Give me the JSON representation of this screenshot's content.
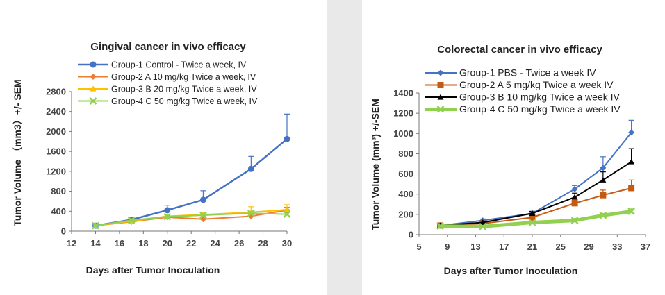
{
  "chart_data": [
    {
      "type": "line",
      "title": "Gingival cancer in vivo efficacy",
      "xlabel": "Days after Tumor Inoculation",
      "ylabel": "Tumor Volume （mm3）+/- SEM",
      "xlim": [
        12,
        30
      ],
      "ylim": [
        0,
        2800
      ],
      "xticks": [
        12,
        14,
        16,
        18,
        20,
        22,
        24,
        26,
        28,
        30
      ],
      "yticks": [
        0,
        400,
        800,
        1200,
        1600,
        2000,
        2400,
        2800
      ],
      "legend_position": "top",
      "series": [
        {
          "name": "Group-1 Control - Twice a week, IV",
          "color": "#4472c4",
          "marker": "circle",
          "line_width": 2.5,
          "x": [
            14,
            17,
            20,
            23,
            27,
            30
          ],
          "values": [
            110,
            230,
            420,
            630,
            1250,
            1850
          ],
          "error": [
            15,
            45,
            100,
            180,
            250,
            500
          ]
        },
        {
          "name": "Group-2 A 10 mg/kg Twice a week, IV",
          "color": "#ed7d31",
          "marker": "diamond",
          "line_width": 2,
          "x": [
            14,
            17,
            20,
            23,
            27,
            30
          ],
          "values": [
            110,
            190,
            280,
            240,
            300,
            420
          ],
          "error": [
            10,
            20,
            30,
            30,
            40,
            60
          ]
        },
        {
          "name": "Group-3 B 20 mg/kg Twice a week, IV",
          "color": "#ffc000",
          "marker": "triangle",
          "line_width": 2,
          "x": [
            14,
            17,
            20,
            23,
            27,
            30
          ],
          "values": [
            110,
            200,
            300,
            330,
            380,
            430
          ],
          "error": [
            10,
            20,
            30,
            35,
            110,
            100
          ]
        },
        {
          "name": "Group-4 C 50 mg/kg Twice a week, IV",
          "color": "#92d050",
          "marker": "x",
          "line_width": 2,
          "x": [
            14,
            17,
            20,
            23,
            27,
            30
          ],
          "values": [
            110,
            220,
            290,
            320,
            360,
            340
          ],
          "error": [
            10,
            20,
            20,
            25,
            30,
            30
          ]
        }
      ]
    },
    {
      "type": "line",
      "title": "Colorectal cancer in vivo efficacy",
      "xlabel": "Days after Tumor Inoculation",
      "ylabel": "Tumor Volume (mm³) +/-SEM",
      "xlim": [
        5,
        37
      ],
      "ylim": [
        0,
        1400
      ],
      "xticks": [
        5,
        9,
        13,
        17,
        21,
        25,
        29,
        33,
        37
      ],
      "yticks": [
        0,
        200,
        400,
        600,
        800,
        1000,
        1200,
        1400
      ],
      "legend_position": "top",
      "series": [
        {
          "name": "Group-1 PBS - Twice a week IV",
          "color": "#4472c4",
          "marker": "diamond",
          "line_width": 2,
          "x": [
            8,
            14,
            21,
            27,
            31,
            35
          ],
          "values": [
            90,
            140,
            210,
            450,
            660,
            1010
          ],
          "error": [
            10,
            15,
            20,
            35,
            110,
            120
          ]
        },
        {
          "name": "Group-2 A 5 mg/kg Twice a week IV",
          "color": "#c55a11",
          "marker": "square",
          "line_width": 2,
          "x": [
            8,
            14,
            21,
            27,
            31,
            35
          ],
          "values": [
            90,
            110,
            170,
            310,
            390,
            460
          ],
          "error": [
            10,
            15,
            20,
            30,
            50,
            80
          ]
        },
        {
          "name": "Group-3 B 10 mg/kg Twice a week IV",
          "color": "#000000",
          "marker": "triangle",
          "line_width": 2,
          "x": [
            8,
            14,
            21,
            27,
            31,
            35
          ],
          "values": [
            90,
            120,
            210,
            370,
            540,
            720
          ],
          "error": [
            10,
            15,
            20,
            40,
            80,
            130
          ]
        },
        {
          "name": "Group-4 C 50 mg/kg Twice a week IV",
          "color": "#92d050",
          "marker": "x",
          "line_width": 5,
          "x": [
            8,
            14,
            21,
            27,
            31,
            35
          ],
          "values": [
            85,
            80,
            120,
            140,
            190,
            230
          ],
          "error": [
            10,
            10,
            15,
            20,
            20,
            25
          ]
        }
      ]
    }
  ]
}
